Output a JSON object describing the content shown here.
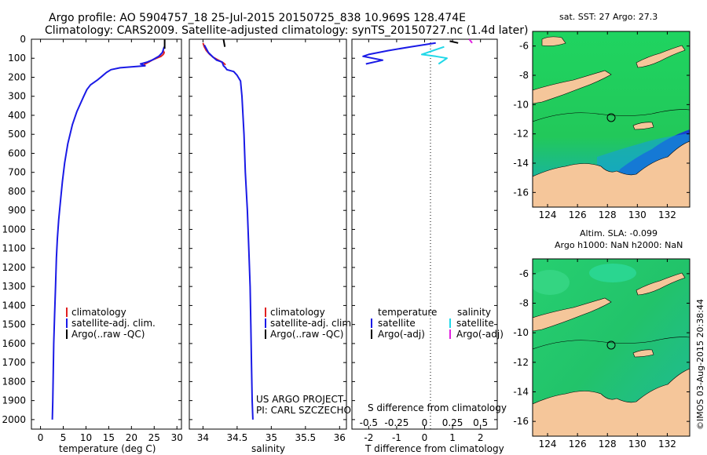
{
  "title_line1": "Argo profile: AO 5904757_18 25-Jul-2015 20150725_838 10.969S 128.474E",
  "title_line2": "Climatology: CARS2009. Satellite-adjusted climatology: synTS_20150727.nc (1.4d later)",
  "colors": {
    "climatology": "#e02020",
    "satellite": "#1a1ae6",
    "argo": "#000000",
    "sat_salinity": "#20d8e8",
    "argo_salinity_adj": "#e020e0",
    "land": "#f5c69a",
    "ocean": "#2bd45a"
  },
  "chart_data": [
    {
      "id": "temperature",
      "type": "line",
      "xlabel": "temperature (deg C)",
      "ylabel": "",
      "xlim": [
        -2,
        31
      ],
      "ylim": [
        2050,
        0
      ],
      "xticks": [
        0,
        5,
        10,
        15,
        20,
        25,
        30
      ],
      "yticks": [
        0,
        100,
        200,
        300,
        400,
        500,
        600,
        700,
        800,
        900,
        1000,
        1100,
        1200,
        1300,
        1400,
        1500,
        1600,
        1700,
        1800,
        1900,
        2000
      ],
      "legend": [
        "climatology",
        "satellite-adj. clim.",
        "Argo(..raw -QC)"
      ],
      "series": [
        {
          "name": "climatology",
          "color": "#e02020",
          "x": [
            27.0,
            27.2,
            27.0,
            26.5,
            25.5,
            24.5,
            23.8,
            23.0,
            22.5
          ],
          "y": [
            60,
            70,
            80,
            90,
            100,
            110,
            120,
            130,
            140
          ]
        },
        {
          "name": "satellite-adj. clim.",
          "color": "#1a1ae6",
          "x": [
            27.2,
            26.8,
            26.0,
            24.5,
            23.5,
            22.7,
            22.0,
            23.0,
            17.5,
            15.5,
            14.5,
            13.5,
            12.5,
            11.0,
            10.2,
            9.5,
            8.0,
            7.0,
            6.0,
            5.3,
            4.8,
            4.4,
            4.0,
            3.7,
            3.5,
            3.3,
            3.1,
            2.9,
            2.8,
            2.7,
            2.6
          ],
          "y": [
            40,
            70,
            90,
            110,
            120,
            125,
            130,
            140,
            150,
            160,
            175,
            195,
            215,
            240,
            265,
            300,
            380,
            450,
            550,
            650,
            750,
            850,
            950,
            1050,
            1150,
            1300,
            1450,
            1600,
            1750,
            1900,
            2000
          ]
        },
        {
          "name": "Argo(..raw -QC)",
          "color": "#000000",
          "x": [
            27.3,
            27.3
          ],
          "y": [
            0,
            50
          ]
        }
      ]
    },
    {
      "id": "salinity",
      "type": "line",
      "xlabel": "salinity",
      "ylabel": "",
      "xlim": [
        33.8,
        36.1
      ],
      "ylim": [
        2050,
        0
      ],
      "xticks": [
        34,
        34.5,
        35,
        35.5,
        36
      ],
      "xtick_labels": [
        "34",
        "34.5",
        "35",
        "35.5",
        "36"
      ],
      "legend": [
        "climatology",
        "satellite-adj. clim.",
        "Argo(..raw -QC)"
      ],
      "series": [
        {
          "name": "climatology",
          "color": "#e02020",
          "x": [
            34.0,
            34.02,
            34.05,
            34.1,
            34.15,
            34.2,
            34.25,
            34.3,
            34.33
          ],
          "y": [
            20,
            40,
            60,
            80,
            95,
            105,
            115,
            125,
            135
          ]
        },
        {
          "name": "satellite-adj. clim.",
          "color": "#1a1ae6",
          "x": [
            34.02,
            34.08,
            34.15,
            34.2,
            34.28,
            34.3,
            34.33,
            34.35,
            34.45,
            34.5,
            34.55,
            34.57,
            34.6,
            34.62,
            34.65,
            34.67,
            34.69,
            34.7,
            34.71,
            34.72,
            34.73
          ],
          "y": [
            30,
            70,
            95,
            110,
            120,
            140,
            150,
            160,
            170,
            190,
            220,
            300,
            500,
            700,
            900,
            1100,
            1300,
            1500,
            1700,
            1900,
            2000
          ]
        },
        {
          "name": "Argo(..raw -QC)",
          "color": "#000000",
          "x": [
            34.3,
            34.32
          ],
          "y": [
            0,
            40
          ]
        }
      ]
    },
    {
      "id": "difference",
      "type": "line",
      "xlabel": "T difference from climatology",
      "xlabel_top": "S difference from climatology",
      "xlim": [
        -2.6,
        2.6
      ],
      "ylim": [
        2050,
        0
      ],
      "xticks": [
        -2,
        -1,
        0,
        1,
        2
      ],
      "xtick_labels": [
        "-2",
        "-1",
        "0",
        "1",
        "2"
      ],
      "sticks": [
        -0.5,
        -0.25,
        0,
        0.25,
        0.5
      ],
      "stick_labels": [
        "-0.5",
        "-0.25",
        "0",
        "0.25",
        "0.5"
      ],
      "legend_temperature": [
        "temperature",
        "satellite",
        "Argo(-adj)"
      ],
      "legend_salinity": [
        "salinity",
        "satellite",
        "Argo(-adj)"
      ],
      "series": [
        {
          "name": "T satellite",
          "color": "#1a1ae6",
          "x": [
            0.4,
            -0.5,
            -1.3,
            -2.0,
            -2.2,
            -1.5,
            -2.1
          ],
          "y": [
            20,
            40,
            60,
            80,
            90,
            110,
            130
          ]
        },
        {
          "name": "S satellite",
          "color": "#20d8e8",
          "x": [
            0.7,
            0.3,
            -0.1,
            0.4,
            0.8,
            0.5
          ],
          "y": [
            40,
            60,
            80,
            90,
            100,
            130
          ]
        },
        {
          "name": "T Argo(-adj)",
          "color": "#000000",
          "x": [
            0.9,
            1.2
          ],
          "y": [
            10,
            20
          ]
        },
        {
          "name": "S Argo(-adj)",
          "color": "#e020e0",
          "x": [
            1.6,
            1.7
          ],
          "y": [
            0,
            20
          ]
        }
      ]
    },
    {
      "id": "sst_map",
      "type": "heatmap",
      "title": "sat. SST: 27 Argo: 27.3",
      "xticks": [
        124,
        126,
        128,
        130,
        132
      ],
      "yticks": [
        -6,
        -8,
        -10,
        -12,
        -14,
        -16
      ],
      "xlim": [
        123,
        133.5
      ],
      "ylim": [
        -17,
        -5
      ],
      "argo_position": [
        128.474,
        -10.969
      ]
    },
    {
      "id": "sla_map",
      "type": "heatmap",
      "title_line1": "Altim. SLA: -0.099",
      "title_line2": "Argo h1000: NaN h2000: NaN",
      "xticks": [
        124,
        126,
        128,
        130,
        132
      ],
      "yticks": [
        -6,
        -8,
        -10,
        -12,
        -14,
        -16
      ],
      "xlim": [
        123,
        133.5
      ],
      "ylim": [
        -17,
        -5
      ],
      "argo_position": [
        128.474,
        -10.969
      ]
    }
  ],
  "project_line1": "US ARGO PROJECT",
  "project_line2": "PI: CARL SZCZECHOWSKI",
  "credit": "©IMOS 03-Aug-2015 20:38:44"
}
